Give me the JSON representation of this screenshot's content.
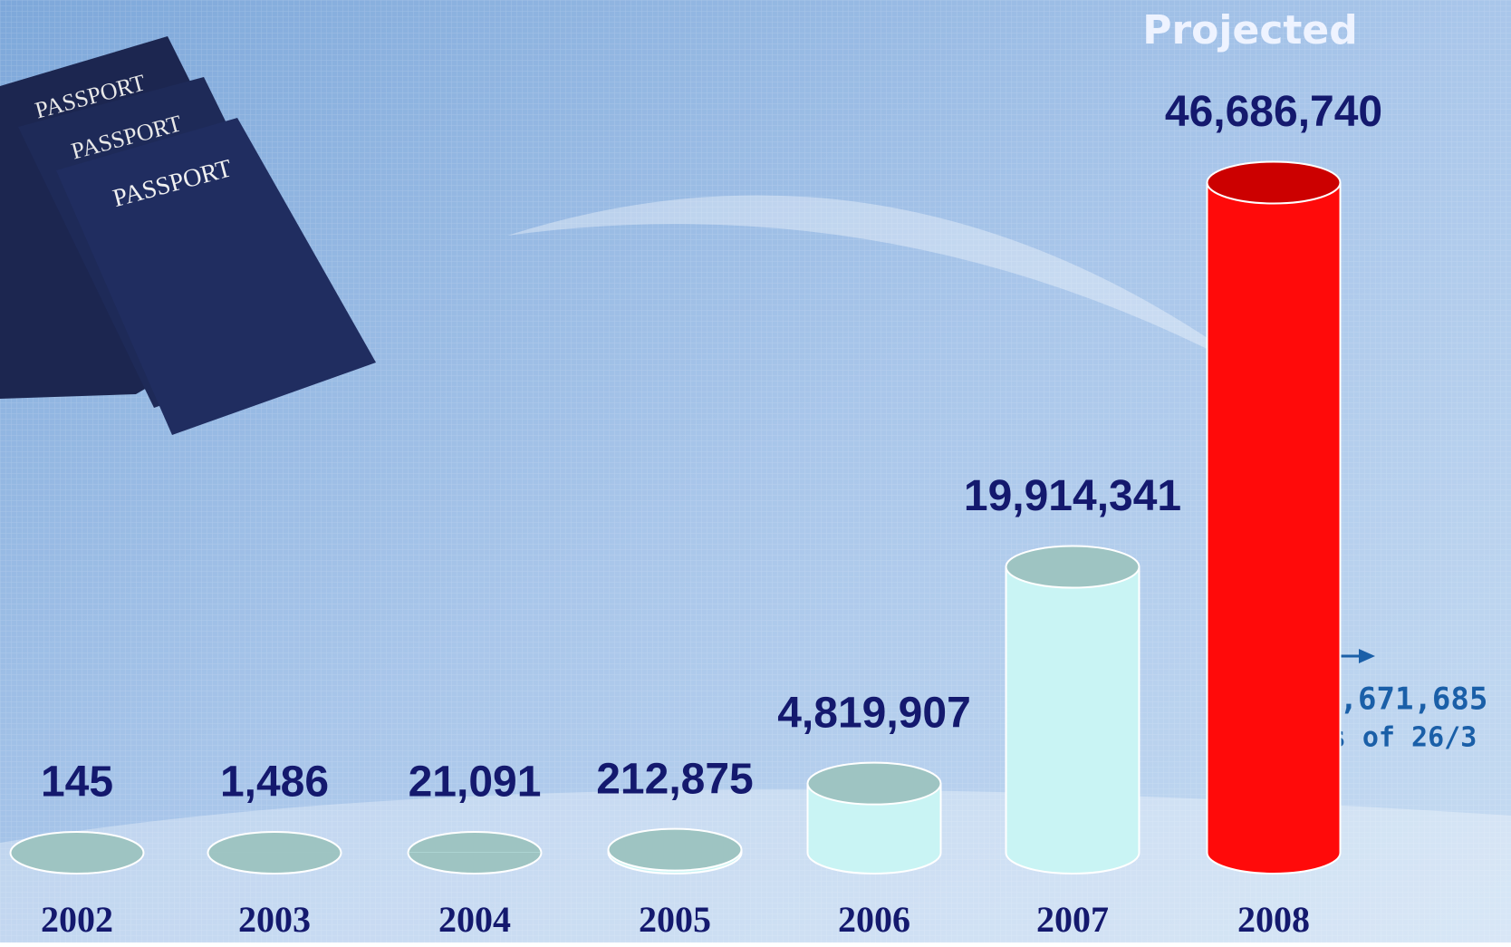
{
  "chart_data": {
    "type": "bar",
    "categories": [
      "2002",
      "2003",
      "2004",
      "2005",
      "2006",
      "2007",
      "2008"
    ],
    "values": [
      145,
      1486,
      21091,
      212875,
      4819907,
      19914341,
      46686740
    ],
    "value_labels": [
      "145",
      "1,486",
      "21,091",
      "212,875",
      "4,819,907",
      "19,914,341",
      "46,686,740"
    ],
    "colors": [
      "#c9f4f4",
      "#c9f4f4",
      "#c9f4f4",
      "#c9f4f4",
      "#c9f4f4",
      "#c9f4f4",
      "#ff0a0a"
    ],
    "ylim": [
      0,
      50000000
    ],
    "header": "Projected",
    "annotation": [
      "11,671,685",
      "as of 26/3"
    ],
    "decoration_labels": [
      "PASSPORT",
      "PASSPORT",
      "PASSPORT"
    ]
  }
}
